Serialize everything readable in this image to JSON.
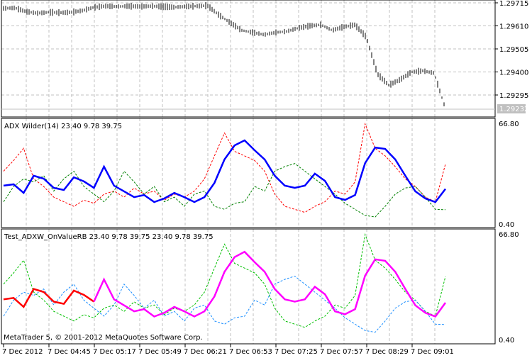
{
  "panes": {
    "price": {
      "ticks": [
        "1.29715",
        "1.29610",
        "1.29505",
        "1.29400",
        "1.29295"
      ],
      "current": "1.29232"
    },
    "adx": {
      "title": "ADX Wilder(14) 23.40 9.78 39.75",
      "max_label": "66.80",
      "min_label": "0.40"
    },
    "test": {
      "title": "Test_ADXW_OnValueRB 23.40 9.78 39.75 23.40 9.78 39.75",
      "max_label": "66.80",
      "min_label": "0.40"
    }
  },
  "copyright": "MetaTrader 5, © 2001-2012 MetaQuotes Software Corp.",
  "time_labels": [
    "7 Dec 2012",
    "7 Dec 04:45",
    "7 Dec 05:17",
    "7 Dec 05:49",
    "7 Dec 06:21",
    "7 Dec 06:53",
    "7 Dec 07:25",
    "7 Dec 07:57",
    "7 Dec 08:29",
    "7 Dec 09:01"
  ],
  "colors": {
    "adx": "#0000ff",
    "plus_di": "#008000",
    "minus_di": "#ff0000",
    "test_adx": "#ff00ff",
    "test_adx_alt": "#ff0000",
    "test_plus_di": "#1e90ff",
    "test_minus_di": "#00c000",
    "grid": "#c0c0c0",
    "current_price_bg": "#c0c0c0"
  },
  "chart_data": [
    {
      "type": "bar",
      "title": "",
      "ylim": [
        1.292,
        1.2973
      ],
      "close": [
        1.2969,
        1.29692,
        1.29675,
        1.29668,
        1.29672,
        1.2967,
        1.29672,
        1.2968,
        1.29695,
        1.297,
        1.29698,
        1.297,
        1.29698,
        1.297,
        1.29698,
        1.29695,
        1.29698,
        1.297,
        1.29702,
        1.2966,
        1.29625,
        1.2959,
        1.2958,
        1.2957,
        1.2958,
        1.29585,
        1.296,
        1.2961,
        1.29615,
        1.2959,
        1.29605,
        1.29615,
        1.2956,
        1.2939,
        1.2934,
        1.29365,
        1.294,
        1.29405,
        1.29395,
        1.29232
      ]
    },
    {
      "type": "line",
      "title": "ADX Wilder(14)",
      "ylim": [
        0.4,
        66.8
      ],
      "adx": [
        25.5,
        26.4,
        20.8,
        32.0,
        30.1,
        24.1,
        22.7,
        31.0,
        28.3,
        24.1,
        38.0,
        25.5,
        21.8,
        18.0,
        19.4,
        14.8,
        17.1,
        20.8,
        18.0,
        14.8,
        18.0,
        27.3,
        42.7,
        51.9,
        55.2,
        48.7,
        42.7,
        32.0,
        25.5,
        24.1,
        25.5,
        33.4,
        28.7,
        18.0,
        16.2,
        19.4,
        40.3,
        50.5,
        49.6,
        42.7,
        32.0,
        21.8,
        17.1,
        14.8,
        23.4
      ],
      "plus_di": [
        15,
        25,
        30,
        28,
        32,
        22,
        30,
        35,
        25,
        20,
        15,
        22,
        35,
        28,
        20,
        25,
        15,
        18,
        12,
        20,
        22,
        12,
        10,
        14,
        15,
        25,
        22,
        35,
        38,
        40,
        35,
        30,
        25,
        20,
        14,
        10,
        6,
        5,
        12,
        20,
        24,
        25,
        18,
        10,
        9.78
      ],
      "minus_di": [
        35,
        42,
        50,
        30,
        25,
        18,
        15,
        12,
        16,
        14,
        20,
        22,
        18,
        24,
        20,
        22,
        16,
        20,
        18,
        22,
        30,
        45,
        60,
        48,
        45,
        42,
        35,
        20,
        12,
        10,
        8,
        12,
        15,
        22,
        20,
        28,
        66,
        50,
        45,
        38,
        30,
        25,
        18,
        15,
        39.75
      ]
    },
    {
      "type": "line",
      "title": "Test_ADXW_OnValueRB",
      "ylim": [
        0.4,
        66.8
      ]
    }
  ]
}
